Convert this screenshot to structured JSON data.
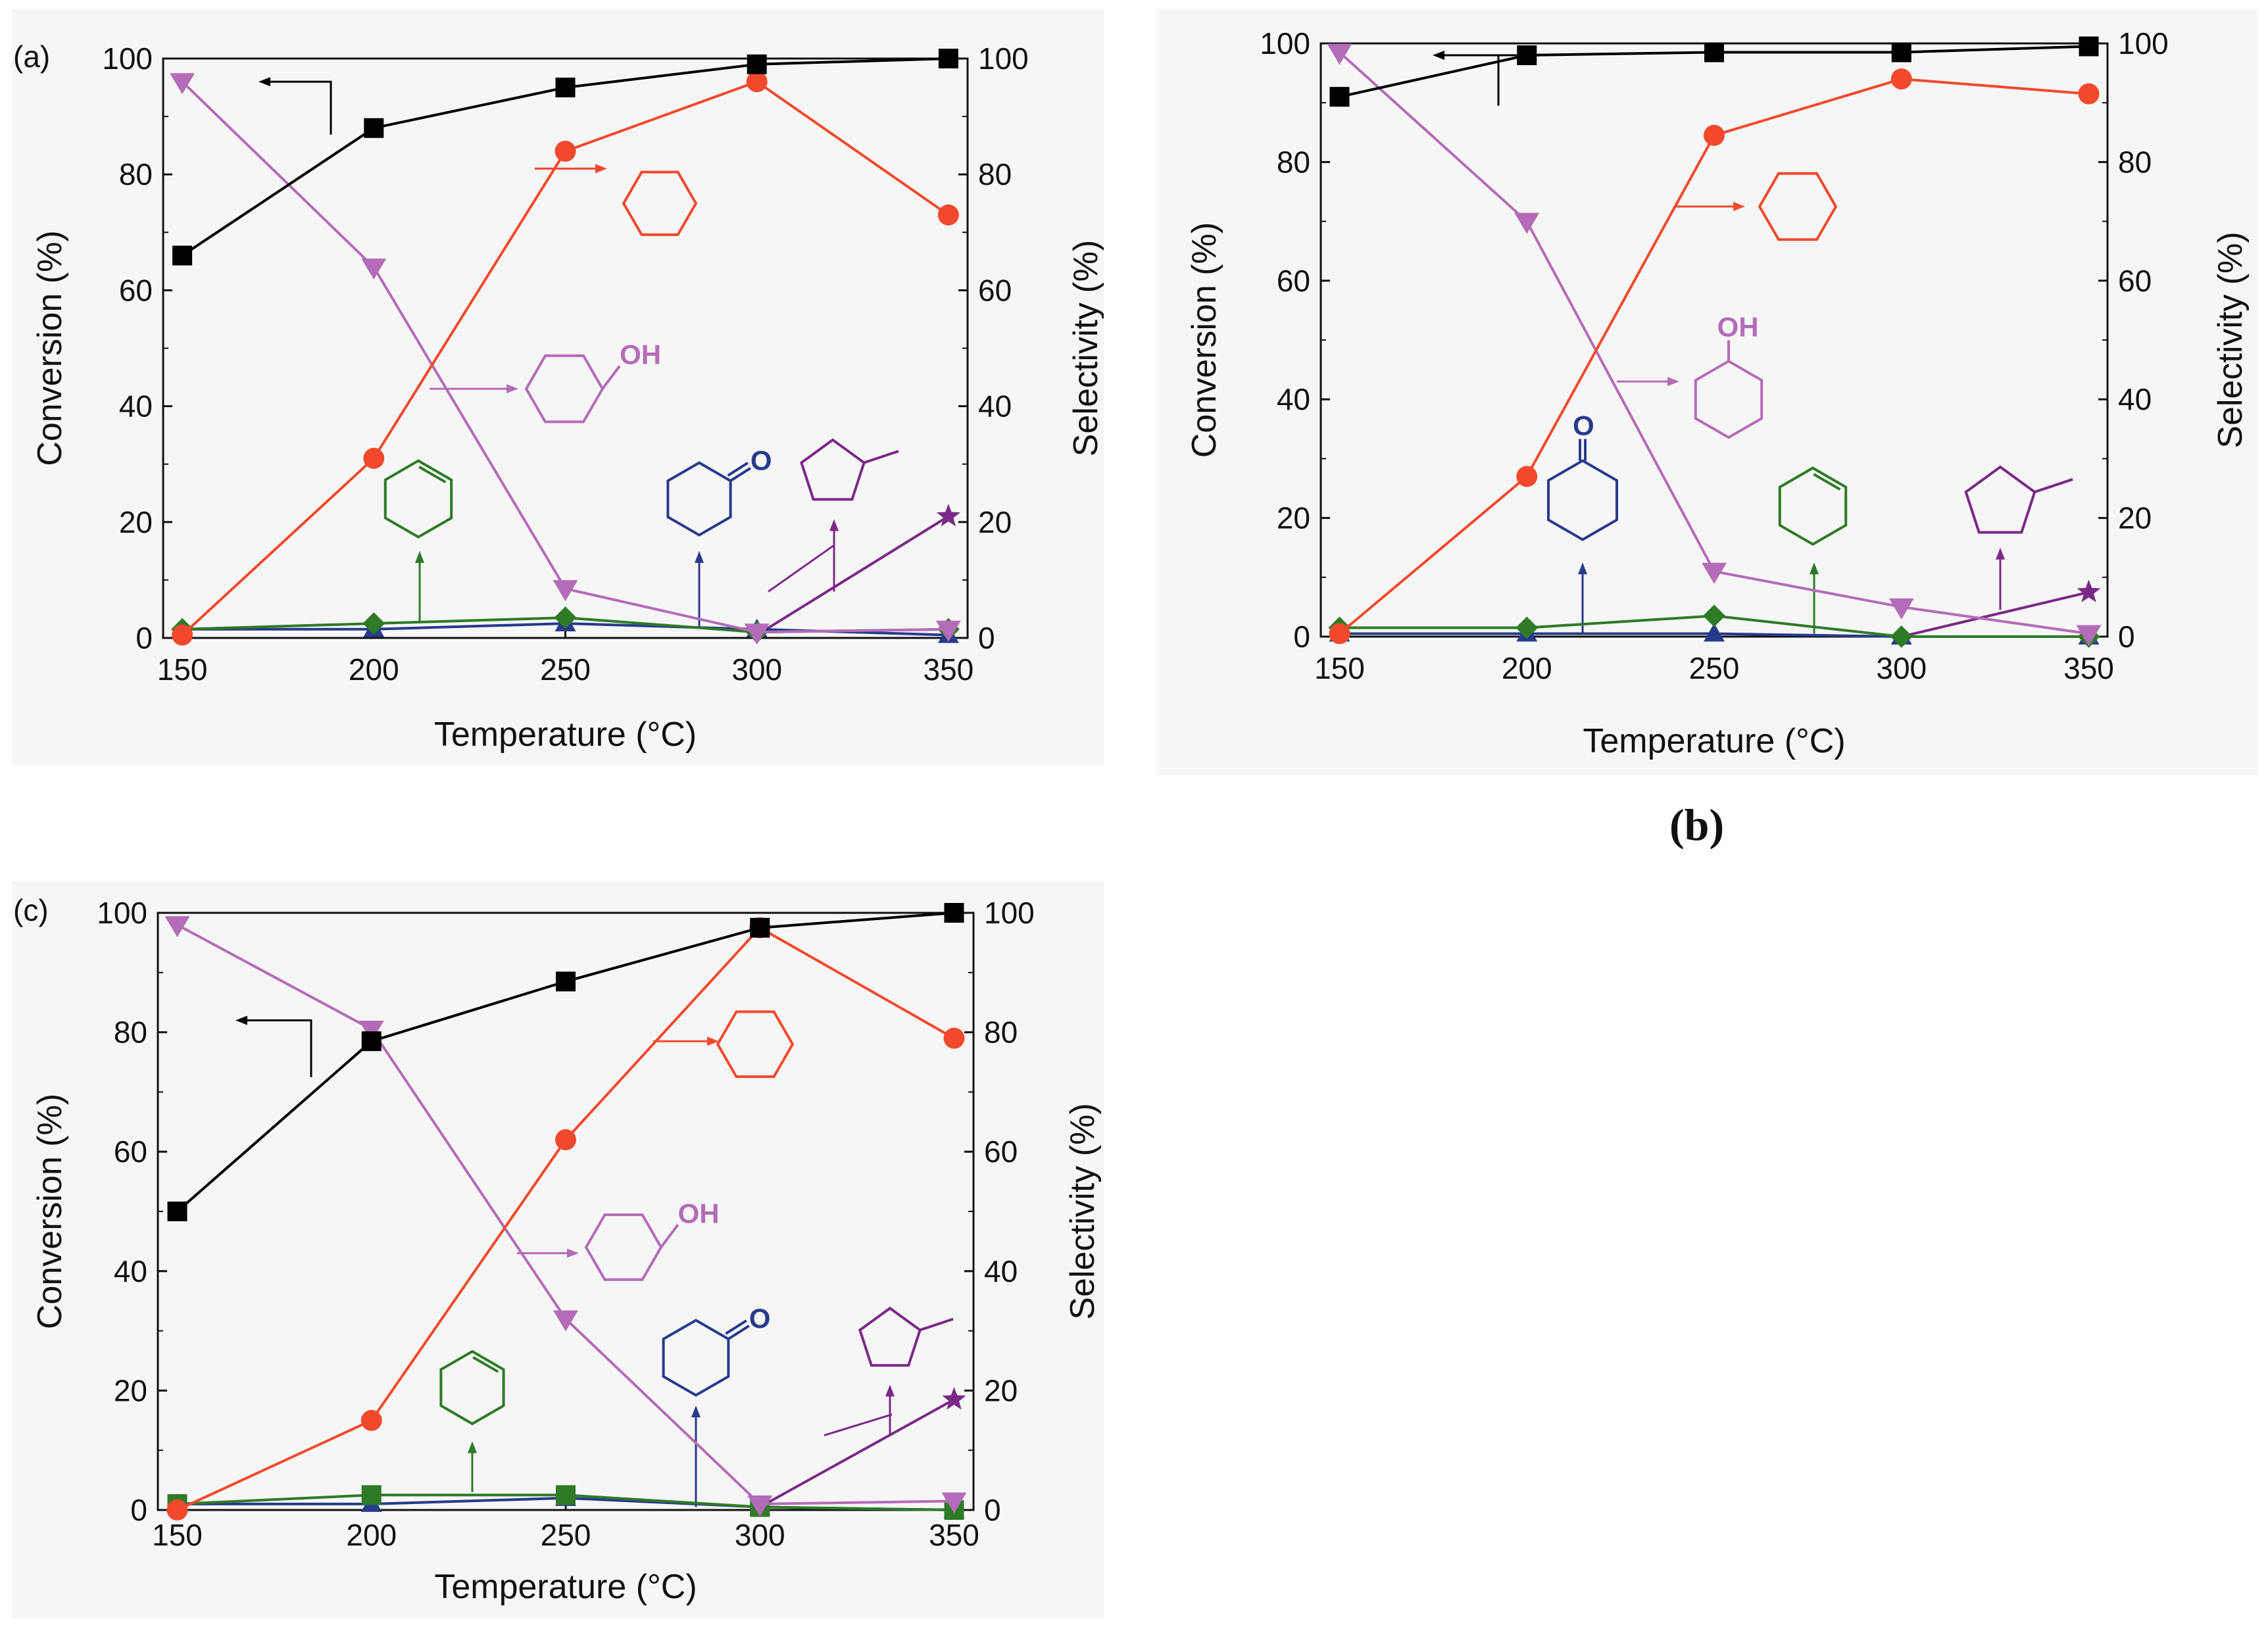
{
  "colors": {
    "conversion": "#000000",
    "cyclohexane": "#f2492d",
    "cyclohexanol": "#b46cb8",
    "cyclohexene": "#2f7a27",
    "cyclohexanone": "#283a8c",
    "methylcyclopentane": "#7a2a86"
  },
  "captions": {
    "b": "(b)"
  },
  "chart_data": [
    {
      "id": "a",
      "panel_label": "(a)",
      "type": "line",
      "xlabel": "Temperature (°C)",
      "ylabel_left": "Conversion (%)",
      "ylabel_right": "Selectivity (%)",
      "x": [
        150,
        200,
        250,
        300,
        350
      ],
      "xticks": [
        "150",
        "200",
        "250",
        "300",
        "350"
      ],
      "yticks": [
        "0",
        "20",
        "40",
        "60",
        "80",
        "100"
      ],
      "ylim": [
        0,
        100
      ],
      "annotations": {
        "oh_label": "OH",
        "o_label": "O"
      },
      "series": [
        {
          "name": "Conversion",
          "axis": "left",
          "marker": "square",
          "values": [
            66,
            88,
            95,
            99,
            100
          ]
        },
        {
          "name": "Cyclohexane",
          "axis": "right",
          "marker": "circle",
          "values": [
            0.5,
            31,
            84,
            96,
            73
          ]
        },
        {
          "name": "Cyclohexanol",
          "axis": "right",
          "marker": "triangle-down",
          "values": [
            96,
            64,
            8.5,
            1,
            1.5
          ]
        },
        {
          "name": "Cyclohexene",
          "axis": "right",
          "marker": "diamond",
          "values": [
            1.5,
            2.5,
            3.5,
            1,
            1.5
          ]
        },
        {
          "name": "Cyclohexanone",
          "axis": "right",
          "marker": "triangle-up",
          "values": [
            1.5,
            1.5,
            2.5,
            1.5,
            0.5
          ]
        },
        {
          "name": "Methylcyclopentane",
          "axis": "right",
          "marker": "star",
          "values": [
            0,
            0,
            0,
            0.5,
            21
          ]
        }
      ]
    },
    {
      "id": "b",
      "panel_label": "",
      "type": "line",
      "xlabel": "Temperature (°C)",
      "ylabel_left": "Conversion (%)",
      "ylabel_right": "Selectivity (%)",
      "x": [
        150,
        200,
        250,
        300,
        350
      ],
      "xticks": [
        "150",
        "200",
        "250",
        "300",
        "350"
      ],
      "yticks": [
        "0",
        "20",
        "40",
        "60",
        "80",
        "100"
      ],
      "ylim": [
        0,
        100
      ],
      "annotations": {
        "oh_label": "OH",
        "o_label": "O"
      },
      "series": [
        {
          "name": "Conversion",
          "axis": "left",
          "marker": "square",
          "values": [
            91,
            98,
            98.5,
            98.5,
            99.5
          ]
        },
        {
          "name": "Cyclohexane",
          "axis": "right",
          "marker": "circle",
          "values": [
            0.5,
            27,
            84.5,
            94,
            91.5
          ]
        },
        {
          "name": "Cyclohexanol",
          "axis": "right",
          "marker": "triangle-down",
          "values": [
            98.5,
            70,
            11,
            5,
            0.5
          ]
        },
        {
          "name": "Cyclohexene",
          "axis": "right",
          "marker": "diamond",
          "values": [
            1.5,
            1.5,
            3.5,
            0,
            0
          ]
        },
        {
          "name": "Cyclohexanone",
          "axis": "right",
          "marker": "triangle-up",
          "values": [
            0.5,
            0.5,
            0.5,
            0,
            0
          ]
        },
        {
          "name": "Methylcyclopentane",
          "axis": "right",
          "marker": "star",
          "values": [
            0,
            0,
            0,
            0,
            7.5
          ]
        }
      ]
    },
    {
      "id": "c",
      "panel_label": "(c)",
      "type": "line",
      "xlabel": "Temperature (°C)",
      "ylabel_left": "Conversion (%)",
      "ylabel_right": "Selectivity (%)",
      "x": [
        150,
        200,
        250,
        300,
        350
      ],
      "xticks": [
        "150",
        "200",
        "250",
        "300",
        "350"
      ],
      "yticks": [
        "0",
        "20",
        "40",
        "60",
        "80",
        "100"
      ],
      "ylim": [
        0,
        100
      ],
      "annotations": {
        "oh_label": "OH",
        "o_label": "O"
      },
      "series": [
        {
          "name": "Conversion",
          "axis": "left",
          "marker": "square",
          "values": [
            50,
            78.5,
            88.5,
            97.5,
            100
          ]
        },
        {
          "name": "Cyclohexane",
          "axis": "right",
          "marker": "circle",
          "values": [
            0,
            15,
            62,
            97.5,
            79
          ]
        },
        {
          "name": "Cyclohexanol",
          "axis": "right",
          "marker": "triangle-down",
          "values": [
            98,
            80.5,
            32,
            1,
            1.5
          ]
        },
        {
          "name": "Cyclohexene",
          "axis": "right",
          "marker": "square",
          "values": [
            1,
            2.5,
            2.5,
            0.5,
            0
          ]
        },
        {
          "name": "Cyclohexanone",
          "axis": "right",
          "marker": "triangle-up",
          "values": [
            1,
            1,
            2,
            0.5,
            0
          ]
        },
        {
          "name": "Methylcyclopentane",
          "axis": "right",
          "marker": "star",
          "values": [
            0,
            0,
            0,
            0.5,
            18.5
          ]
        }
      ]
    }
  ]
}
